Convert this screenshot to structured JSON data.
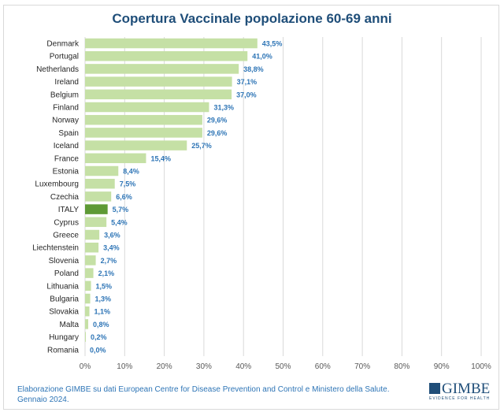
{
  "chart_data": {
    "type": "bar",
    "orientation": "horizontal",
    "title": "Copertura Vaccinale popolazione 60-69 anni",
    "categories": [
      "Denmark",
      "Portugal",
      "Netherlands",
      "Ireland",
      "Belgium",
      "Finland",
      "Norway",
      "Spain",
      "Iceland",
      "France",
      "Estonia",
      "Luxembourg",
      "Czechia",
      "ITALY",
      "Cyprus",
      "Greece",
      "Liechtenstein",
      "Slovenia",
      "Poland",
      "Lithuania",
      "Bulgaria",
      "Slovakia",
      "Malta",
      "Hungary",
      "Romania"
    ],
    "values": [
      43.5,
      41.0,
      38.8,
      37.1,
      37.0,
      31.3,
      29.6,
      29.6,
      25.7,
      15.4,
      8.4,
      7.5,
      6.6,
      5.7,
      5.4,
      3.6,
      3.4,
      2.7,
      2.1,
      1.5,
      1.3,
      1.1,
      0.8,
      0.2,
      0.0
    ],
    "data_labels": [
      "43,5%",
      "41,0%",
      "38,8%",
      "37,1%",
      "37,0%",
      "31,3%",
      "29,6%",
      "29,6%",
      "25,7%",
      "15,4%",
      "8,4%",
      "7,5%",
      "6,6%",
      "5,7%",
      "5,4%",
      "3,6%",
      "3,4%",
      "2,7%",
      "2,1%",
      "1,5%",
      "1,3%",
      "1,1%",
      "0,8%",
      "0,2%",
      "0,0%"
    ],
    "xlim": [
      0,
      100
    ],
    "xticks": [
      "0%",
      "10%",
      "20%",
      "30%",
      "40%",
      "50%",
      "60%",
      "70%",
      "80%",
      "90%",
      "100%"
    ],
    "grid": true,
    "colors": {
      "bar": "#c5e0a5",
      "highlight": "#5e9a35",
      "label": "#2e75b6",
      "title": "#1f4e79"
    },
    "highlight": "ITALY"
  },
  "footer": {
    "line1": "Elaborazione GIMBE su dati European Centre for Disease Prevention and Control e Ministero della Salute.",
    "line2": "Gennaio 2024."
  },
  "logo": {
    "name": "GIMBE",
    "tagline": "EVIDENCE FOR HEALTH"
  }
}
